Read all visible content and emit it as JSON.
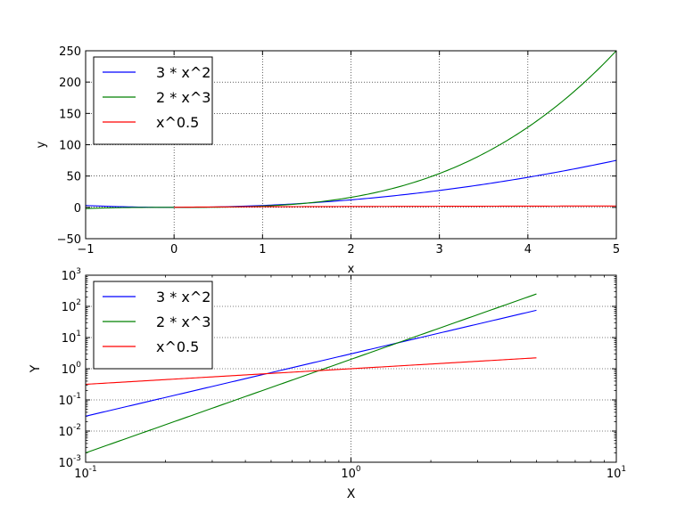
{
  "chart_data": [
    {
      "type": "line",
      "title": "",
      "xlabel": "x",
      "ylabel": "y",
      "xscale": "linear",
      "yscale": "linear",
      "xlim": [
        -1,
        5
      ],
      "ylim": [
        -50,
        250
      ],
      "xticks": [
        -1,
        0,
        1,
        2,
        3,
        4,
        5
      ],
      "xtick_labels": [
        "−1",
        "0",
        "1",
        "2",
        "3",
        "4",
        "5"
      ],
      "yticks": [
        -50,
        0,
        50,
        100,
        150,
        200,
        250
      ],
      "ytick_labels": [
        "−50",
        "0",
        "50",
        "100",
        "150",
        "200",
        "250"
      ],
      "grid": true,
      "legend_position": "top-left",
      "series": [
        {
          "name": "3 * x^2",
          "color": "#0000ff",
          "x": [
            -1,
            -0.5,
            0,
            0.5,
            1,
            1.5,
            2,
            2.5,
            3,
            3.5,
            4,
            4.5,
            5
          ],
          "y": [
            3,
            0.75,
            0,
            0.75,
            3,
            6.75,
            12,
            18.75,
            27,
            36.75,
            48,
            60.75,
            75
          ]
        },
        {
          "name": "2 * x^3",
          "color": "#008000",
          "x": [
            -1,
            -0.5,
            0,
            0.5,
            1,
            1.5,
            2,
            2.5,
            3,
            3.5,
            4,
            4.5,
            5
          ],
          "y": [
            -2,
            -0.25,
            0,
            0.25,
            2,
            6.75,
            16,
            31.25,
            54,
            85.75,
            128,
            182.25,
            250
          ]
        },
        {
          "name": "x^0.5",
          "color": "#ff0000",
          "x": [
            0,
            0.25,
            0.5,
            1,
            2,
            3,
            4,
            5
          ],
          "y": [
            0,
            0.5,
            0.71,
            1,
            1.41,
            1.73,
            2,
            2.24
          ]
        }
      ]
    },
    {
      "type": "line",
      "title": "",
      "xlabel": "X",
      "ylabel": "Y",
      "xscale": "log",
      "yscale": "log",
      "xlim": [
        0.1,
        10
      ],
      "ylim": [
        0.001,
        1000
      ],
      "xtick_labels": [
        {
          "base": "10",
          "exp": "-1"
        },
        {
          "base": "10",
          "exp": "0"
        },
        {
          "base": "10",
          "exp": "1"
        }
      ],
      "ytick_labels": [
        {
          "base": "10",
          "exp": "-3"
        },
        {
          "base": "10",
          "exp": "-2"
        },
        {
          "base": "10",
          "exp": "-1"
        },
        {
          "base": "10",
          "exp": "0"
        },
        {
          "base": "10",
          "exp": "1"
        },
        {
          "base": "10",
          "exp": "2"
        },
        {
          "base": "10",
          "exp": "3"
        }
      ],
      "grid": true,
      "legend_position": "top-left",
      "series": [
        {
          "name": "3 * x^2",
          "color": "#0000ff",
          "x": [
            0.1,
            0.2,
            0.5,
            1,
            2,
            5
          ],
          "y": [
            0.03,
            0.12,
            0.75,
            3,
            12,
            75
          ]
        },
        {
          "name": "2 * x^3",
          "color": "#008000",
          "x": [
            0.1,
            0.2,
            0.5,
            1,
            2,
            5
          ],
          "y": [
            0.002,
            0.016,
            0.25,
            2,
            16,
            250
          ]
        },
        {
          "name": "x^0.5",
          "color": "#ff0000",
          "x": [
            0.1,
            0.2,
            0.5,
            1,
            2,
            5
          ],
          "y": [
            0.316,
            0.447,
            0.707,
            1,
            1.414,
            2.236
          ]
        }
      ]
    }
  ]
}
